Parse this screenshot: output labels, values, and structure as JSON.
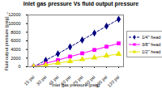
{
  "chart_data": {
    "type": "line",
    "title": "Inlet gas pressure Vs fluid output pressure",
    "x_label": "Inlet gas pressure (psig)",
    "y_label": "Fluid output pressure (psig)",
    "categories": [
      "15 psi",
      "30 psi",
      "45 psi",
      "60 psi",
      "75 psi",
      "90 psi",
      "105 psi",
      "120 psi"
    ],
    "series": [
      {
        "name": "1/4\" head",
        "color": "#000080",
        "marker": "diamond",
        "line_style": "dashed",
        "values": [
          0,
          1500,
          3000,
          4600,
          6200,
          7800,
          9400,
          11000
        ]
      },
      {
        "name": "3/8\" head",
        "color": "#ff00ff",
        "marker": "square",
        "line_style": "solid",
        "values": [
          0,
          800,
          1550,
          2350,
          3100,
          3900,
          4650,
          5400
        ]
      },
      {
        "name": "1/2\" head",
        "color": "#e6e600",
        "marker": "triangle",
        "line_style": "solid",
        "values": [
          0,
          420,
          850,
          1270,
          1700,
          2100,
          2550,
          2950
        ]
      }
    ],
    "ylim": [
      0,
      12000
    ],
    "yticks": [
      0,
      2000,
      4000,
      6000,
      8000,
      10000,
      12000
    ],
    "grid": false,
    "legend": "right"
  }
}
